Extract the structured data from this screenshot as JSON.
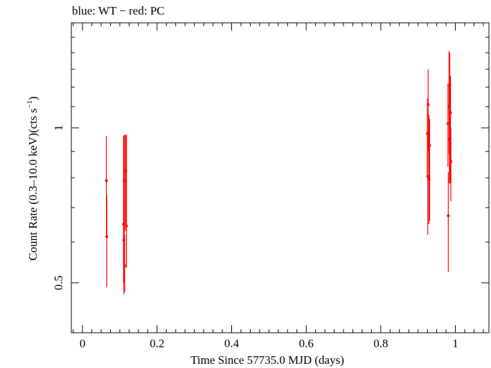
{
  "chart_data": {
    "type": "scatter",
    "title": "blue: WT − red: PC",
    "xlabel": "Time Since 57735.0 MJD (days)",
    "ylabel_main": "Count Rate (0.3–10.0 keV)(cts s",
    "ylabel_sup": "−1",
    "ylabel_end": ")",
    "x_scale": "linear",
    "y_scale": "log",
    "xlim": [
      -0.03,
      1.09
    ],
    "ylim": [
      0.4,
      1.6
    ],
    "x_ticks": [
      0,
      0.2,
      0.4,
      0.6,
      0.8,
      1
    ],
    "x_tick_labels": [
      "0",
      "0.2",
      "0.4",
      "0.6",
      "0.8",
      "1"
    ],
    "y_ticks": [
      0.5,
      1
    ],
    "y_tick_labels": [
      "0.5",
      "1"
    ],
    "series": [
      {
        "color": "#ff0000",
        "points": [
          {
            "x": 0.064,
            "y": 0.79,
            "ylo": 0.62,
            "yhi": 0.965
          },
          {
            "x": 0.065,
            "y": 0.615,
            "ylo": 0.49,
            "yhi": 0.74
          },
          {
            "x": 0.11,
            "y": 0.65,
            "ylo": 0.5,
            "yhi": 0.965
          },
          {
            "x": 0.111,
            "y": 0.605,
            "ylo": 0.475,
            "yhi": 0.72
          },
          {
            "x": 0.112,
            "y": 0.79,
            "ylo": 0.6,
            "yhi": 0.97
          },
          {
            "x": 0.113,
            "y": 0.54,
            "ylo": 0.48,
            "yhi": 0.62
          },
          {
            "x": 0.115,
            "y": 0.79,
            "ylo": 0.63,
            "yhi": 0.97
          },
          {
            "x": 0.116,
            "y": 0.825,
            "ylo": 0.65,
            "yhi": 0.965
          },
          {
            "x": 0.118,
            "y": 0.645,
            "ylo": 0.535,
            "yhi": 0.97
          },
          {
            "x": 0.925,
            "y": 0.975,
            "ylo": 0.8,
            "yhi": 1.14
          },
          {
            "x": 0.926,
            "y": 0.805,
            "ylo": 0.62,
            "yhi": 0.97
          },
          {
            "x": 0.927,
            "y": 1.11,
            "ylo": 0.9,
            "yhi": 1.3
          },
          {
            "x": 0.929,
            "y": 0.795,
            "ylo": 0.65,
            "yhi": 1.06
          },
          {
            "x": 0.931,
            "y": 0.925,
            "ylo": 0.66,
            "yhi": 1.04
          },
          {
            "x": 0.98,
            "y": 1.02,
            "ylo": 0.84,
            "yhi": 1.22
          },
          {
            "x": 0.981,
            "y": 0.675,
            "ylo": 0.525,
            "yhi": 0.82
          },
          {
            "x": 0.983,
            "y": 1.1,
            "ylo": 0.89,
            "yhi": 1.41
          },
          {
            "x": 0.984,
            "y": 0.95,
            "ylo": 0.78,
            "yhi": 1.1
          },
          {
            "x": 0.985,
            "y": 1.21,
            "ylo": 1.0,
            "yhi": 1.4
          },
          {
            "x": 0.986,
            "y": 0.93,
            "ylo": 0.78,
            "yhi": 1.22
          },
          {
            "x": 0.987,
            "y": 1.07,
            "ylo": 0.85,
            "yhi": 1.26
          },
          {
            "x": 0.988,
            "y": 0.86,
            "ylo": 0.72,
            "yhi": 1.0
          }
        ]
      }
    ]
  }
}
